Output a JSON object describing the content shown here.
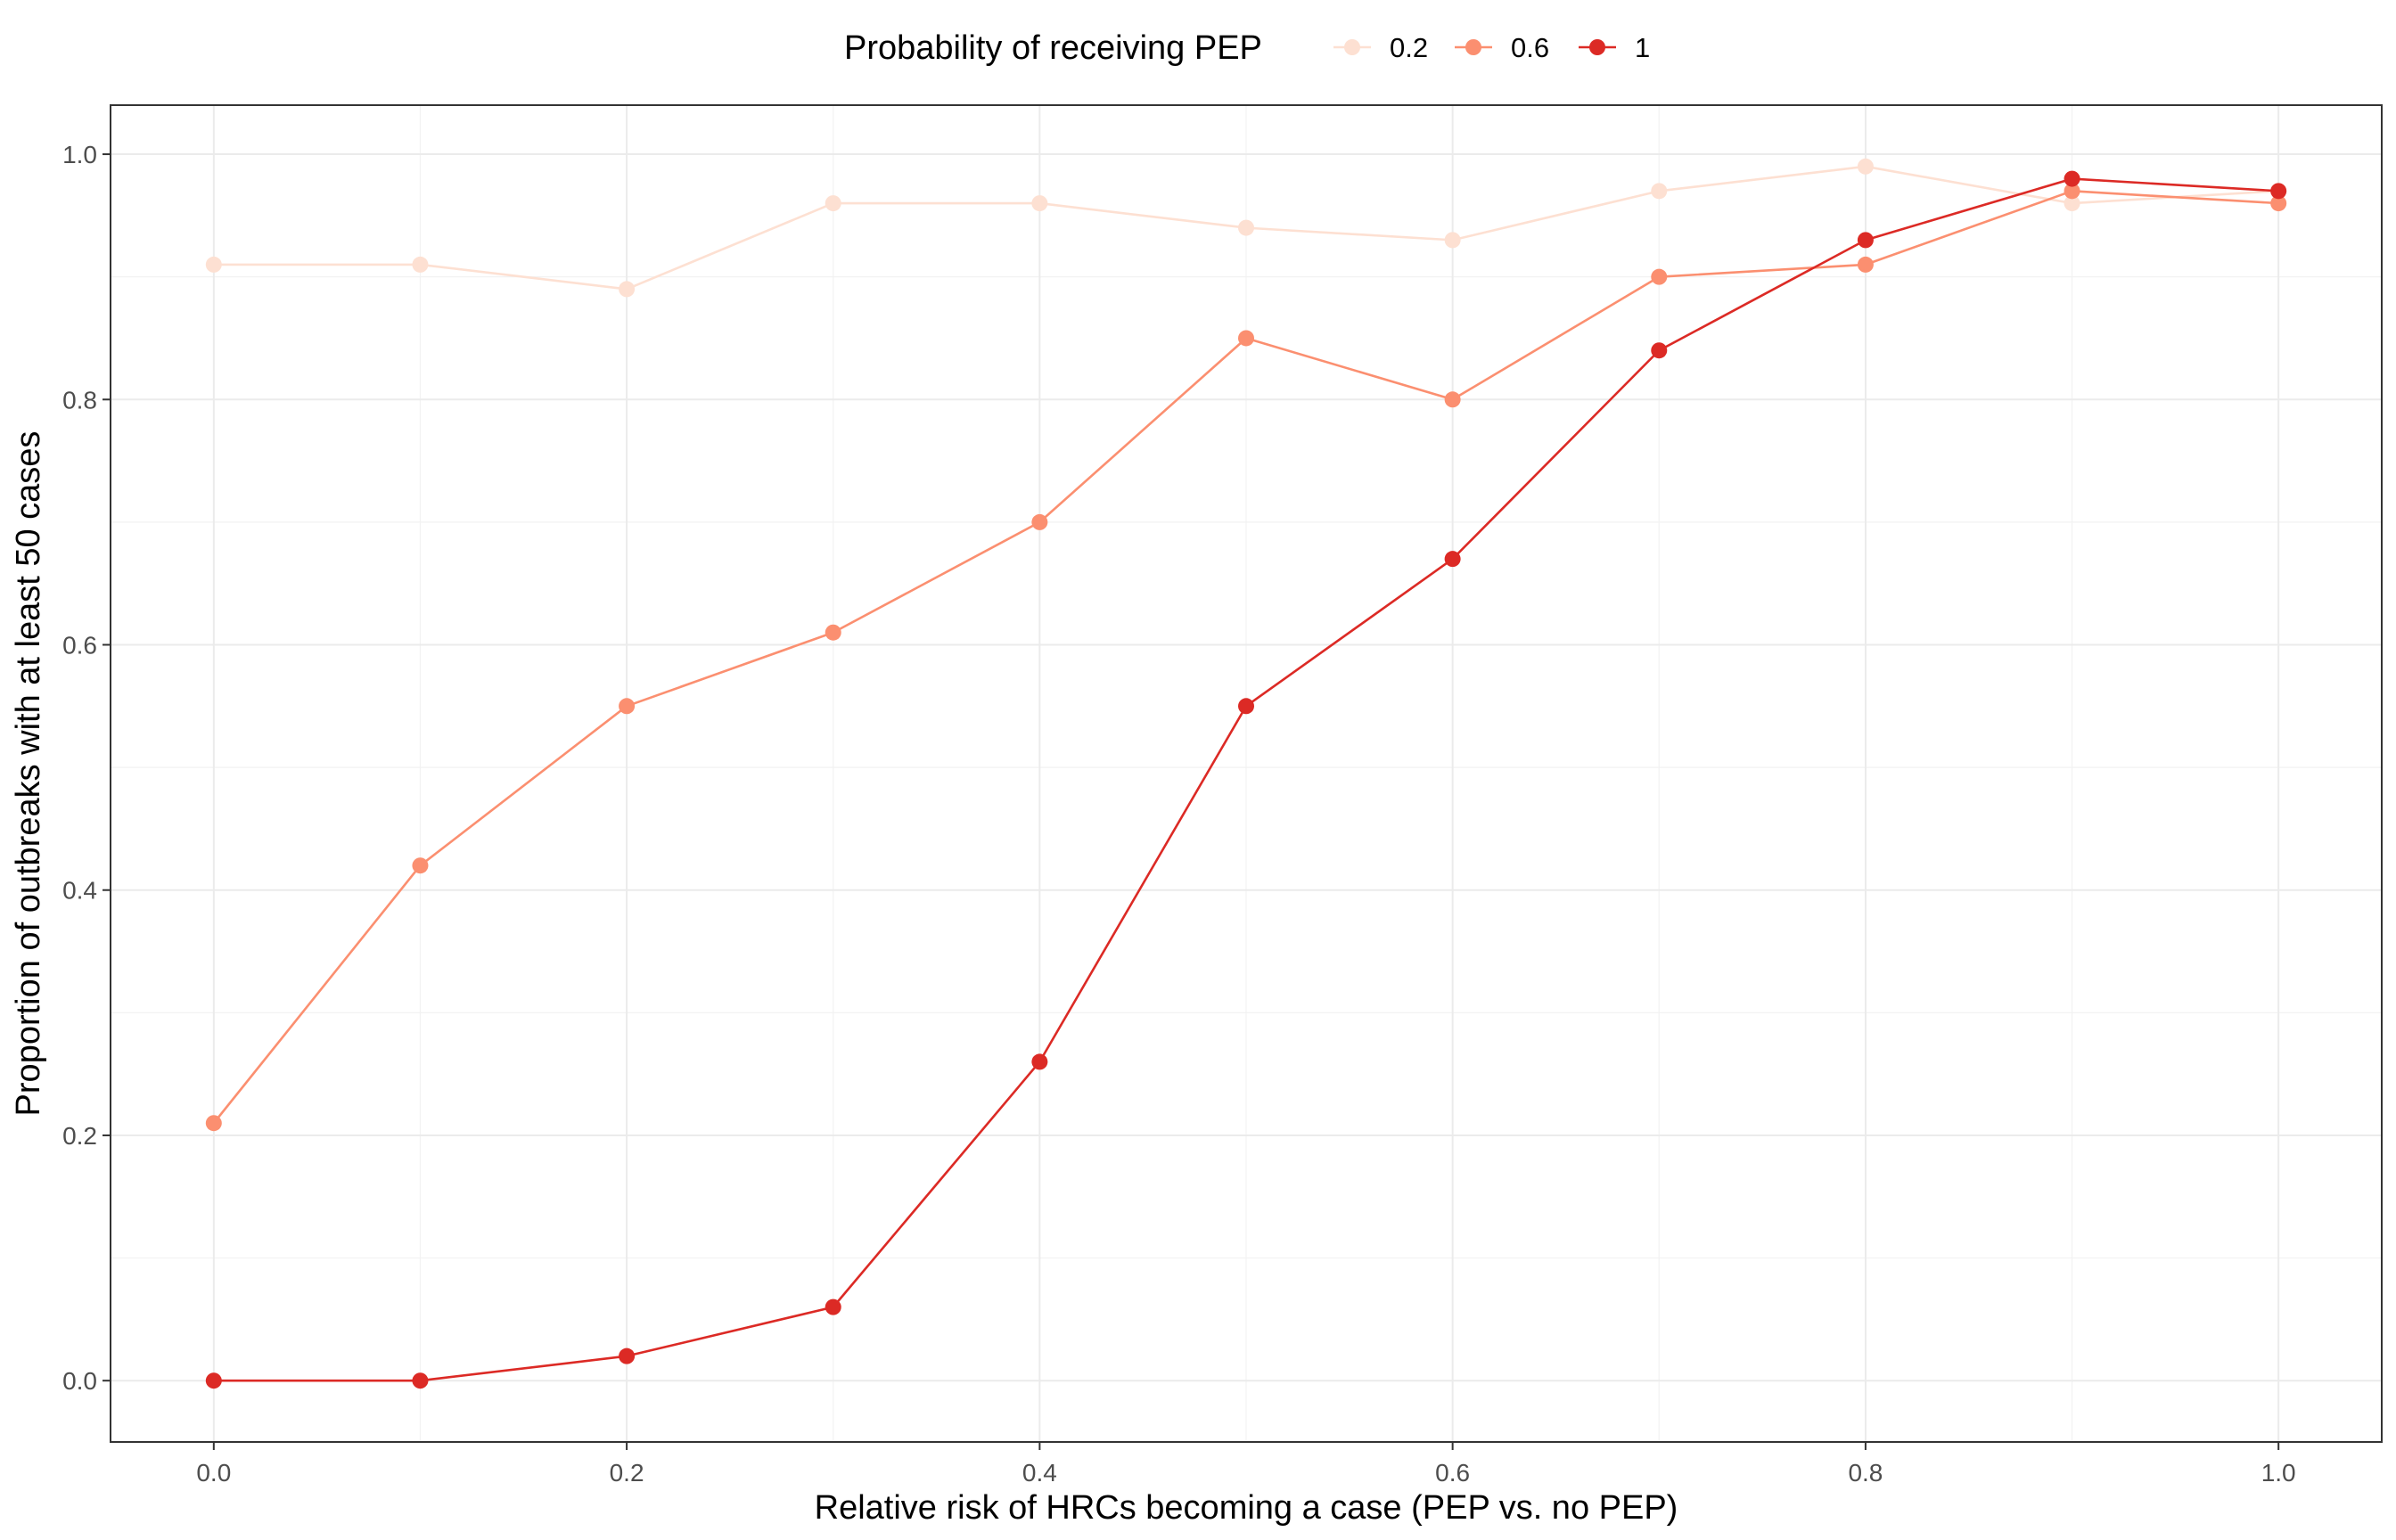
{
  "chart_data": {
    "type": "line",
    "xlabel": "Relative risk of HRCs becoming a case (PEP vs. no PEP)",
    "ylabel": "Proportion of outbreaks with at least 50 cases",
    "xlim": [
      -0.05,
      1.05
    ],
    "ylim": [
      -0.05,
      1.04
    ],
    "x_ticks": [
      "0.0",
      "0.2",
      "0.4",
      "0.6",
      "0.8",
      "1.0"
    ],
    "y_ticks": [
      "0.0",
      "0.2",
      "0.4",
      "0.6",
      "0.8",
      "1.0"
    ],
    "grid": true,
    "legend": {
      "title": "Probability of receiving PEP",
      "position": "top"
    },
    "x": [
      0.0,
      0.1,
      0.2,
      0.3,
      0.4,
      0.5,
      0.6,
      0.7,
      0.8,
      0.9,
      1.0
    ],
    "series": [
      {
        "name": "0.2",
        "color": "#fde0d2",
        "values": [
          0.91,
          0.91,
          0.89,
          0.96,
          0.96,
          0.94,
          0.93,
          0.97,
          0.99,
          0.96,
          0.97
        ]
      },
      {
        "name": "0.6",
        "color": "#fb8f70",
        "values": [
          0.21,
          0.42,
          0.55,
          0.61,
          0.7,
          0.85,
          0.8,
          0.9,
          0.91,
          0.97,
          0.96
        ]
      },
      {
        "name": "1",
        "color": "#dc2a25",
        "values": [
          0.0,
          0.0,
          0.02,
          0.06,
          0.26,
          0.55,
          0.67,
          0.84,
          0.93,
          0.98,
          0.97
        ]
      }
    ]
  }
}
